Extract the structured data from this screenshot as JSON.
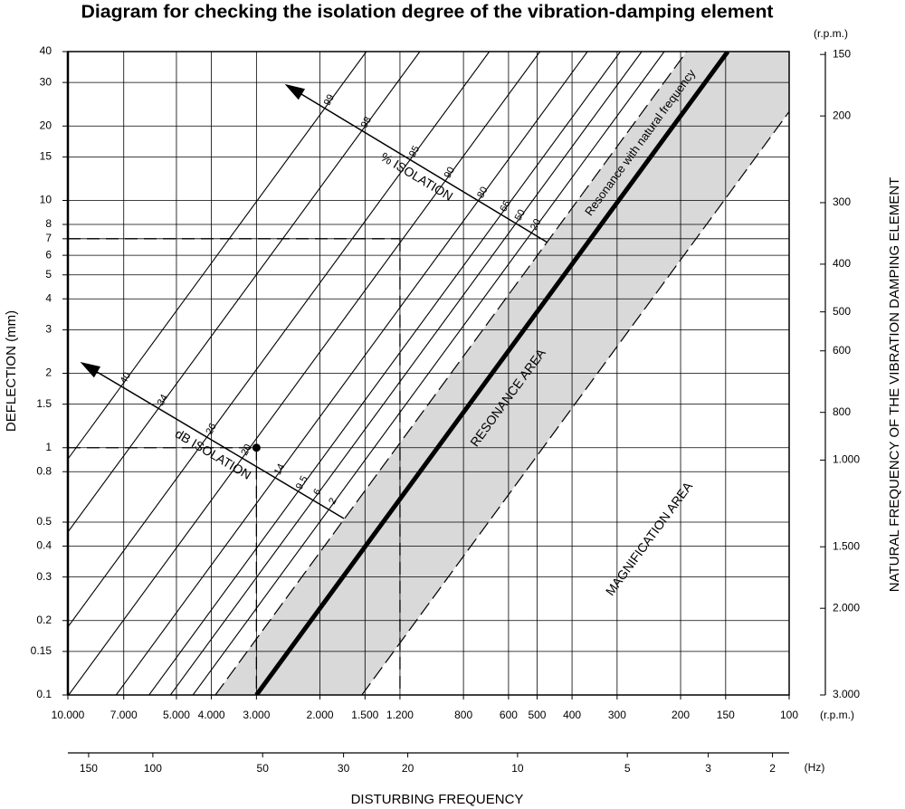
{
  "chart_data": {
    "type": "isolation-diagram",
    "title": "Diagram for checking the isolation degree of the vibration-damping element",
    "ylabel": "DEFLECTION (mm)",
    "y2label": "NATURAL FREQUENCY OF THE VIBRATION DAMPING ELEMENT",
    "y2unit": "(r.p.m.)",
    "xlabel": "DISTURBING FREQUENCY",
    "xunit": "(r.p.m.)",
    "x2unit": "(Hz)",
    "log_scale": true,
    "grid": true,
    "ylim": [
      0.1,
      40
    ],
    "yticks": [
      0.1,
      0.15,
      0.2,
      0.3,
      0.4,
      0.5,
      0.8,
      1,
      1.5,
      2,
      3,
      4,
      5,
      6,
      7,
      8,
      10,
      15,
      20,
      30,
      40
    ],
    "xlim": [
      10000,
      100
    ],
    "xticks": [
      {
        "value": 10000,
        "label": "10.000"
      },
      {
        "value": 7000,
        "label": "7.000"
      },
      {
        "value": 5000,
        "label": "5.000"
      },
      {
        "value": 4000,
        "label": "4.000"
      },
      {
        "value": 3000,
        "label": "3.000"
      },
      {
        "value": 2000,
        "label": "2.000"
      },
      {
        "value": 1500,
        "label": "1.500"
      },
      {
        "value": 1200,
        "label": "1.200"
      },
      800,
      600,
      500,
      400,
      300,
      200,
      150,
      100
    ],
    "x2lim": [
      171,
      1.8
    ],
    "x2ticks": [
      150,
      100,
      50,
      30,
      20,
      10,
      5,
      3,
      2
    ],
    "y2lim": [
      3000,
      148
    ],
    "y2ticks": [
      150,
      200,
      300,
      400,
      500,
      600,
      800,
      {
        "value": 1000,
        "label": "1.000"
      },
      {
        "value": 1500,
        "label": "1.500"
      },
      {
        "value": 2000,
        "label": "2.000"
      },
      {
        "value": 3000,
        "label": "3.000"
      }
    ],
    "isolation_percent": {
      "name": "% ISOLATION",
      "values": [
        99,
        98,
        95,
        90,
        80,
        66,
        50,
        20
      ]
    },
    "isolation_db": {
      "name": "dB ISOLATION",
      "values": [
        40,
        34,
        26,
        20,
        14,
        9.5,
        6,
        2
      ]
    },
    "resonance_label": "Resonance with natural frequency",
    "areas": [
      "RESONANCE AREA",
      "MAGNIFICATION AREA"
    ],
    "examples": [
      {
        "deflection": 7,
        "frequency": 1200
      },
      {
        "deflection": 1,
        "frequency": 3000
      }
    ]
  }
}
